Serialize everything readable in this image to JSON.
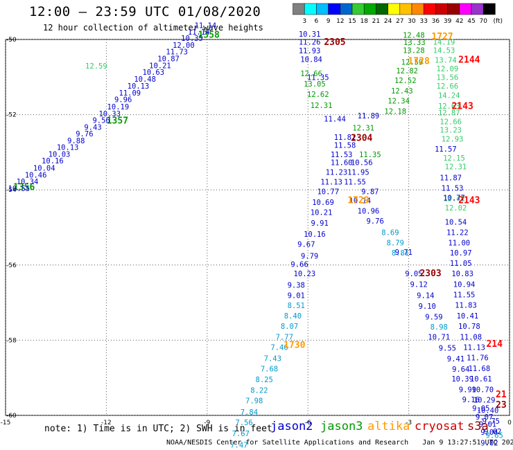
{
  "header": {
    "title": "12:00 – 23:59 UTC 01/08/2020",
    "subtitle": "12 hour collection of altimeter wave heights"
  },
  "color_scale": {
    "colors": [
      "#808080",
      "#00ffff",
      "#00bfff",
      "#0000ff",
      "#0066cc",
      "#33cc33",
      "#00aa00",
      "#006600",
      "#ffff00",
      "#ffc000",
      "#ff8800",
      "#ff0000",
      "#cc0000",
      "#990000",
      "#ff00ff",
      "#9933cc",
      "#000000"
    ],
    "labels": [
      "3",
      "6",
      "9",
      "12",
      "15",
      "18",
      "21",
      "24",
      "27",
      "30",
      "33",
      "36",
      "39",
      "42",
      "45",
      "70"
    ],
    "unit": "(ft)"
  },
  "footer": {
    "note": "note: 1) Time is in UTC; 2) SWH is in feet",
    "satellites": [
      {
        "name": "jason2",
        "color": "#0000cc"
      },
      {
        "name": "jason3",
        "color": "#009900"
      },
      {
        "name": "altika",
        "color": "#ff9900"
      },
      {
        "name": "cryosat",
        "color": "#cc0000"
      },
      {
        "name": "s3a",
        "color": "#990000"
      }
    ],
    "credit": "NOAA/NESDIS Center for Satellite Applications and Research",
    "timestamp": "Jan  9 13:27:51 UTC 2020"
  },
  "chart_data": {
    "type": "scatter",
    "title": "12:00 – 23:59 UTC 01/08/2020",
    "xlim": [
      -15,
      0
    ],
    "ylim": [
      -60,
      -50
    ],
    "x_ticks": [
      "-15",
      "-12",
      "-9",
      "-6",
      "-3",
      "0"
    ],
    "y_ticks": [
      "-50",
      "-52",
      "-54",
      "-56",
      "-58",
      "-60"
    ],
    "grid": true,
    "series": [
      {
        "name": "jason3",
        "color": "#009900",
        "labels": [
          {
            "x": -14.45,
            "y": -54.01,
            "v": "1356",
            "time": true
          },
          {
            "x": -11.67,
            "y": -52.24,
            "v": "1357",
            "time": true
          },
          {
            "x": -8.95,
            "y": -49.95,
            "v": "1358",
            "time": true
          },
          {
            "x": -4.35,
            "y": -52.42,
            "v": "12.31"
          },
          {
            "x": -4.15,
            "y": -53.13,
            "v": "11.35"
          },
          {
            "x": -2.85,
            "y": -49.95,
            "v": "12.48"
          },
          {
            "x": -2.83,
            "y": -50.15,
            "v": "13.33"
          },
          {
            "x": -2.85,
            "y": -50.36,
            "v": "13.28"
          },
          {
            "x": -2.9,
            "y": -50.67,
            "v": "12.59"
          },
          {
            "x": -3.05,
            "y": -50.9,
            "v": "12.82"
          },
          {
            "x": -3.1,
            "y": -51.16,
            "v": "12.52"
          },
          {
            "x": -3.2,
            "y": -51.44,
            "v": "12.43"
          },
          {
            "x": -3.3,
            "y": -51.7,
            "v": "12.34"
          },
          {
            "x": -3.4,
            "y": -51.98,
            "v": "12.18"
          },
          {
            "x": -5.9,
            "y": -50.98,
            "v": "12.66"
          },
          {
            "x": -5.8,
            "y": -51.25,
            "v": "13.05"
          },
          {
            "x": -5.7,
            "y": -51.53,
            "v": "12.62"
          },
          {
            "x": -5.6,
            "y": -51.82,
            "v": "12.31"
          }
        ]
      },
      {
        "name": "jason3-tail",
        "color": "#33cc66",
        "labels": [
          {
            "x": -1.95,
            "y": -50.14,
            "v": "14.19"
          },
          {
            "x": -1.95,
            "y": -50.36,
            "v": "14.53"
          },
          {
            "x": -1.9,
            "y": -50.62,
            "v": "13.74"
          },
          {
            "x": -1.85,
            "y": -50.85,
            "v": "12.09"
          },
          {
            "x": -1.85,
            "y": -51.08,
            "v": "13.56"
          },
          {
            "x": -1.85,
            "y": -51.31,
            "v": "12.66"
          },
          {
            "x": -1.8,
            "y": -51.56,
            "v": "14.24"
          },
          {
            "x": -1.8,
            "y": -51.84,
            "v": "12.63"
          },
          {
            "x": -1.8,
            "y": -52.02,
            "v": "12.87"
          },
          {
            "x": -1.75,
            "y": -52.26,
            "v": "12.66"
          },
          {
            "x": -1.75,
            "y": -52.48,
            "v": "13.23"
          },
          {
            "x": -1.7,
            "y": -52.72,
            "v": "12.93"
          },
          {
            "x": -1.65,
            "y": -53.22,
            "v": "12.15"
          },
          {
            "x": -1.6,
            "y": -53.45,
            "v": "12.31"
          },
          {
            "x": -1.65,
            "y": -54.3,
            "v": "12.41"
          },
          {
            "x": -1.6,
            "y": -54.55,
            "v": "12.02"
          },
          {
            "x": -12.3,
            "y": -50.77,
            "v": "12.59"
          }
        ]
      },
      {
        "name": "jason2",
        "color": "#0000cc",
        "labels": [
          {
            "x": -14.6,
            "y": -54.03,
            "v": "10.55"
          },
          {
            "x": -14.35,
            "y": -53.85,
            "v": "10.34"
          },
          {
            "x": -14.1,
            "y": -53.67,
            "v": "10.46"
          },
          {
            "x": -13.85,
            "y": -53.49,
            "v": "10.04"
          },
          {
            "x": -13.6,
            "y": -53.3,
            "v": "10.16"
          },
          {
            "x": -13.4,
            "y": -53.12,
            "v": "10.03"
          },
          {
            "x": -13.15,
            "y": -52.94,
            "v": "10.13"
          },
          {
            "x": -12.9,
            "y": -52.76,
            "v": "9.88"
          },
          {
            "x": -12.65,
            "y": -52.58,
            "v": "9.76"
          },
          {
            "x": -12.4,
            "y": -52.4,
            "v": "9.43"
          },
          {
            "x": -12.15,
            "y": -52.22,
            "v": "9.56"
          },
          {
            "x": -11.9,
            "y": -52.04,
            "v": "10.33"
          },
          {
            "x": -11.65,
            "y": -51.86,
            "v": "10.19"
          },
          {
            "x": -11.5,
            "y": -51.67,
            "v": "9.96"
          },
          {
            "x": -11.3,
            "y": -51.49,
            "v": "11.09"
          },
          {
            "x": -11.05,
            "y": -51.31,
            "v": "10.13"
          },
          {
            "x": -10.85,
            "y": -51.12,
            "v": "10.48"
          },
          {
            "x": -10.6,
            "y": -50.94,
            "v": "10.63"
          },
          {
            "x": -10.4,
            "y": -50.76,
            "v": "10.21"
          },
          {
            "x": -10.15,
            "y": -50.58,
            "v": "10.87"
          },
          {
            "x": -9.9,
            "y": -50.4,
            "v": "11.73"
          },
          {
            "x": -9.7,
            "y": -50.22,
            "v": "12.00"
          },
          {
            "x": -9.45,
            "y": -50.04,
            "v": "10.35"
          },
          {
            "x": -9.25,
            "y": -49.87,
            "v": "11.14"
          },
          {
            "x": -9.05,
            "y": -49.7,
            "v": "11.14"
          },
          {
            "x": -5.95,
            "y": -49.93,
            "v": "10.31"
          },
          {
            "x": -5.95,
            "y": -50.14,
            "v": "11.26"
          },
          {
            "x": -5.95,
            "y": -50.37,
            "v": "11.93"
          },
          {
            "x": -5.9,
            "y": -50.6,
            "v": "10.84"
          },
          {
            "x": -5.7,
            "y": -51.08,
            "v": "11.35"
          },
          {
            "x": -5.2,
            "y": -52.18,
            "v": "11.44"
          },
          {
            "x": -4.2,
            "y": -52.1,
            "v": "11.89"
          },
          {
            "x": -4.9,
            "y": -52.67,
            "v": "11.81"
          },
          {
            "x": -4.9,
            "y": -52.88,
            "v": "11.58"
          },
          {
            "x": -5.0,
            "y": -53.13,
            "v": "11.53"
          },
          {
            "x": -5.0,
            "y": -53.34,
            "v": "11.60"
          },
          {
            "x": -4.4,
            "y": -53.34,
            "v": "10.56"
          },
          {
            "x": -5.15,
            "y": -53.6,
            "v": "11.23"
          },
          {
            "x": -4.5,
            "y": -53.6,
            "v": "11.95"
          },
          {
            "x": -5.3,
            "y": -53.86,
            "v": "11.13"
          },
          {
            "x": -4.6,
            "y": -53.86,
            "v": "11.55"
          },
          {
            "x": -5.4,
            "y": -54.12,
            "v": "10.77"
          },
          {
            "x": -4.15,
            "y": -54.12,
            "v": "9.87"
          },
          {
            "x": -5.55,
            "y": -54.4,
            "v": "10.69"
          },
          {
            "x": -4.45,
            "y": -54.36,
            "v": "10.14"
          },
          {
            "x": -5.6,
            "y": -54.67,
            "v": "10.21"
          },
          {
            "x": -4.2,
            "y": -54.63,
            "v": "10.96"
          },
          {
            "x": -5.65,
            "y": -54.95,
            "v": "9.91"
          },
          {
            "x": -4.0,
            "y": -54.9,
            "v": "9.76"
          },
          {
            "x": -5.8,
            "y": -55.25,
            "v": "10.16"
          },
          {
            "x": -6.05,
            "y": -55.52,
            "v": "9.67"
          },
          {
            "x": -5.95,
            "y": -55.83,
            "v": "9.79"
          },
          {
            "x": -6.25,
            "y": -56.05,
            "v": "9.66"
          },
          {
            "x": -3.15,
            "y": -55.73,
            "v": "9.71"
          },
          {
            "x": -6.1,
            "y": -56.3,
            "v": "10.23"
          },
          {
            "x": -6.35,
            "y": -56.6,
            "v": "9.38"
          },
          {
            "x": -6.35,
            "y": -56.88,
            "v": "9.01"
          },
          {
            "x": -2.85,
            "y": -56.3,
            "v": "9.05"
          },
          {
            "x": -2.7,
            "y": -56.58,
            "v": "9.12"
          },
          {
            "x": -2.5,
            "y": -56.88,
            "v": "9.14"
          },
          {
            "x": -2.45,
            "y": -57.16,
            "v": "9.10"
          },
          {
            "x": -2.25,
            "y": -57.45,
            "v": "9.59"
          },
          {
            "x": -2.1,
            "y": -57.98,
            "v": "10.71"
          },
          {
            "x": -1.85,
            "y": -58.28,
            "v": "9.55"
          },
          {
            "x": -1.6,
            "y": -58.56,
            "v": "9.41"
          },
          {
            "x": -1.45,
            "y": -58.84,
            "v": "9.64"
          },
          {
            "x": -1.4,
            "y": -59.1,
            "v": "10.39"
          },
          {
            "x": -1.25,
            "y": -59.38,
            "v": "9.99"
          },
          {
            "x": -1.15,
            "y": -59.65,
            "v": "9.16"
          },
          {
            "x": -0.85,
            "y": -59.88,
            "v": "9.05"
          },
          {
            "x": -0.75,
            "y": -60.11,
            "v": "9.07"
          },
          {
            "x": -0.65,
            "y": -60.3,
            "v": "9.01"
          },
          {
            "x": -0.6,
            "y": -60.52,
            "v": "9.04"
          },
          {
            "x": -0.6,
            "y": -60.8,
            "v": "9.02"
          },
          {
            "x": -0.55,
            "y": -61.04,
            "v": "9.35"
          },
          {
            "x": -1.9,
            "y": -52.98,
            "v": "11.57"
          },
          {
            "x": -1.75,
            "y": -53.75,
            "v": "11.87"
          },
          {
            "x": -1.7,
            "y": -54.02,
            "v": "11.53"
          },
          {
            "x": -1.65,
            "y": -54.28,
            "v": "10.77"
          },
          {
            "x": -1.6,
            "y": -54.93,
            "v": "10.54"
          },
          {
            "x": -1.55,
            "y": -55.2,
            "v": "11.22"
          },
          {
            "x": -1.5,
            "y": -55.48,
            "v": "11.00"
          },
          {
            "x": -1.45,
            "y": -55.75,
            "v": "10.97"
          },
          {
            "x": -1.45,
            "y": -56.02,
            "v": "11.05"
          },
          {
            "x": -1.4,
            "y": -56.3,
            "v": "10.83"
          },
          {
            "x": -1.35,
            "y": -56.58,
            "v": "10.94"
          },
          {
            "x": -1.35,
            "y": -56.86,
            "v": "11.55"
          },
          {
            "x": -1.3,
            "y": -57.14,
            "v": "11.83"
          },
          {
            "x": -1.25,
            "y": -57.42,
            "v": "10.41"
          },
          {
            "x": -1.2,
            "y": -57.7,
            "v": "10.78"
          },
          {
            "x": -1.15,
            "y": -57.98,
            "v": "11.08"
          },
          {
            "x": -1.05,
            "y": -58.26,
            "v": "11.13"
          },
          {
            "x": -0.95,
            "y": -58.54,
            "v": "11.76"
          },
          {
            "x": -0.9,
            "y": -58.82,
            "v": "11.68"
          },
          {
            "x": -0.85,
            "y": -59.1,
            "v": "10.61"
          },
          {
            "x": -0.8,
            "y": -59.38,
            "v": "10.70"
          },
          {
            "x": -0.75,
            "y": -59.66,
            "v": "10.29"
          },
          {
            "x": -0.65,
            "y": -59.94,
            "v": "10.40"
          },
          {
            "x": -0.55,
            "y": -60.22,
            "v": "9.75"
          },
          {
            "x": -0.5,
            "y": -60.5,
            "v": "9.62"
          }
        ]
      },
      {
        "name": "jason2-light",
        "color": "#0099cc",
        "labels": [
          {
            "x": -6.35,
            "y": -57.15,
            "v": "8.51"
          },
          {
            "x": -6.45,
            "y": -57.42,
            "v": "8.40"
          },
          {
            "x": -6.55,
            "y": -57.7,
            "v": "8.07"
          },
          {
            "x": -6.7,
            "y": -57.98,
            "v": "7.77"
          },
          {
            "x": -6.85,
            "y": -58.26,
            "v": "7.46"
          },
          {
            "x": -7.05,
            "y": -58.55,
            "v": "7.43"
          },
          {
            "x": -7.15,
            "y": -58.83,
            "v": "7.68"
          },
          {
            "x": -7.3,
            "y": -59.12,
            "v": "8.25"
          },
          {
            "x": -7.45,
            "y": -59.4,
            "v": "8.22"
          },
          {
            "x": -7.6,
            "y": -59.68,
            "v": "7.98"
          },
          {
            "x": -7.75,
            "y": -59.98,
            "v": "7.84"
          },
          {
            "x": -7.9,
            "y": -60.26,
            "v": "7.56"
          },
          {
            "x": -8.0,
            "y": -60.55,
            "v": "7.67"
          },
          {
            "x": -8.05,
            "y": -60.86,
            "v": "7.47"
          },
          {
            "x": -3.55,
            "y": -55.2,
            "v": "8.69"
          },
          {
            "x": -3.4,
            "y": -55.48,
            "v": "8.79"
          },
          {
            "x": -3.25,
            "y": -55.75,
            "v": "8.81"
          },
          {
            "x": -2.1,
            "y": -57.72,
            "v": "8.98"
          },
          {
            "x": -0.45,
            "y": -60.6,
            "v": "9.65"
          }
        ]
      },
      {
        "name": "altika",
        "color": "#ff9900",
        "labels": [
          {
            "x": -2.0,
            "y": -50.0,
            "v": "1727",
            "time": true
          },
          {
            "x": -2.7,
            "y": -50.65,
            "v": "1728",
            "time": true
          },
          {
            "x": -4.5,
            "y": -54.36,
            "v": "1729",
            "time": true
          },
          {
            "x": -6.4,
            "y": -58.2,
            "v": "1730",
            "time": true
          }
        ]
      },
      {
        "name": "cryosat",
        "color": "#ff0000",
        "labels": [
          {
            "x": -1.2,
            "y": -50.62,
            "v": "2144",
            "time": true
          },
          {
            "x": -1.4,
            "y": -51.85,
            "v": "2143",
            "time": true
          },
          {
            "x": -1.2,
            "y": -54.36,
            "v": "2143",
            "time": true
          },
          {
            "x": -0.45,
            "y": -58.18,
            "v": "214",
            "time": true
          },
          {
            "x": -0.25,
            "y": -59.52,
            "v": "21",
            "time": true
          },
          {
            "x": -0.2,
            "y": -61.04,
            "v": "2",
            "time": true
          }
        ]
      },
      {
        "name": "s3a",
        "color": "#990000",
        "labels": [
          {
            "x": -5.2,
            "y": -50.15,
            "v": "2305",
            "time": true
          },
          {
            "x": -4.4,
            "y": -52.7,
            "v": "2304",
            "time": true
          },
          {
            "x": -2.35,
            "y": -56.3,
            "v": "2303",
            "time": true
          },
          {
            "x": -0.25,
            "y": -59.8,
            "v": "23",
            "time": true
          }
        ]
      }
    ]
  }
}
